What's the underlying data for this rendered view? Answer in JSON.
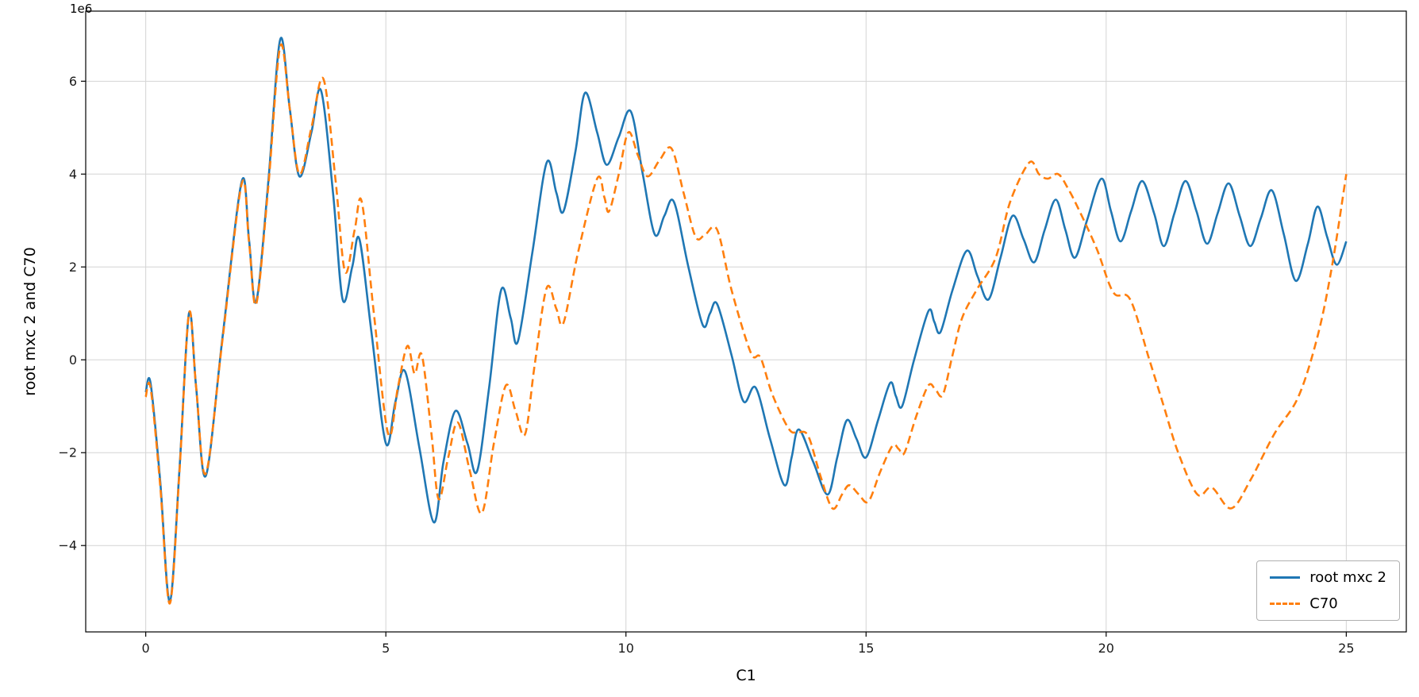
{
  "chart_data": {
    "type": "line",
    "title": "",
    "xlabel": "C1",
    "ylabel": "root mxc 2 and C70",
    "y_offset_label": "1e6",
    "y_unit_multiplier": 1000000,
    "xlim": [
      -1.25,
      26.25
    ],
    "ylim": [
      -5.86,
      7.51
    ],
    "xticks": [
      0,
      5,
      10,
      15,
      20,
      25
    ],
    "yticks": [
      -4,
      -2,
      0,
      2,
      4,
      6
    ],
    "grid": true,
    "colors": {
      "grid": "#d4d4d4",
      "spine": "#000000",
      "background": "#ffffff",
      "tick_text": "#1a1a1a"
    },
    "legend": {
      "position": "lower right"
    },
    "series": [
      {
        "name": "root mxc 2",
        "color": "#1f77b4",
        "style": "solid",
        "points": [
          [
            0,
            -0.7
          ],
          [
            0.1,
            -0.5
          ],
          [
            0.3,
            -2.6
          ],
          [
            0.5,
            -5.2
          ],
          [
            0.7,
            -2.4
          ],
          [
            0.9,
            1.0
          ],
          [
            1.05,
            -0.6
          ],
          [
            1.25,
            -2.5
          ],
          [
            1.6,
            0.5
          ],
          [
            2.0,
            3.85
          ],
          [
            2.15,
            2.6
          ],
          [
            2.3,
            1.25
          ],
          [
            2.55,
            3.8
          ],
          [
            2.8,
            6.9
          ],
          [
            3.0,
            5.4
          ],
          [
            3.2,
            3.95
          ],
          [
            3.45,
            4.9
          ],
          [
            3.65,
            5.8
          ],
          [
            3.9,
            3.6
          ],
          [
            4.1,
            1.3
          ],
          [
            4.3,
            2.0
          ],
          [
            4.45,
            2.6
          ],
          [
            4.7,
            0.6
          ],
          [
            5.0,
            -1.8
          ],
          [
            5.2,
            -0.9
          ],
          [
            5.4,
            -0.25
          ],
          [
            5.7,
            -1.9
          ],
          [
            6.0,
            -3.5
          ],
          [
            6.2,
            -2.2
          ],
          [
            6.45,
            -1.1
          ],
          [
            6.7,
            -1.8
          ],
          [
            6.9,
            -2.4
          ],
          [
            7.15,
            -0.6
          ],
          [
            7.4,
            1.5
          ],
          [
            7.6,
            0.9
          ],
          [
            7.75,
            0.4
          ],
          [
            8.05,
            2.3
          ],
          [
            8.35,
            4.25
          ],
          [
            8.55,
            3.6
          ],
          [
            8.7,
            3.2
          ],
          [
            8.95,
            4.5
          ],
          [
            9.15,
            5.75
          ],
          [
            9.4,
            4.9
          ],
          [
            9.6,
            4.2
          ],
          [
            9.85,
            4.8
          ],
          [
            10.1,
            5.35
          ],
          [
            10.35,
            4.0
          ],
          [
            10.6,
            2.7
          ],
          [
            10.8,
            3.1
          ],
          [
            11.0,
            3.4
          ],
          [
            11.3,
            2.0
          ],
          [
            11.6,
            0.75
          ],
          [
            11.75,
            1.0
          ],
          [
            11.9,
            1.2
          ],
          [
            12.2,
            0.1
          ],
          [
            12.45,
            -0.9
          ],
          [
            12.7,
            -0.6
          ],
          [
            13.0,
            -1.7
          ],
          [
            13.3,
            -2.7
          ],
          [
            13.45,
            -2.1
          ],
          [
            13.6,
            -1.5
          ],
          [
            13.9,
            -2.2
          ],
          [
            14.2,
            -2.9
          ],
          [
            14.4,
            -2.1
          ],
          [
            14.6,
            -1.3
          ],
          [
            14.8,
            -1.7
          ],
          [
            15.0,
            -2.1
          ],
          [
            15.25,
            -1.3
          ],
          [
            15.5,
            -0.5
          ],
          [
            15.62,
            -0.78
          ],
          [
            15.75,
            -1.0
          ],
          [
            16.0,
            0.0
          ],
          [
            16.3,
            1.05
          ],
          [
            16.42,
            0.82
          ],
          [
            16.55,
            0.6
          ],
          [
            16.8,
            1.5
          ],
          [
            17.1,
            2.35
          ],
          [
            17.32,
            1.8
          ],
          [
            17.55,
            1.3
          ],
          [
            17.8,
            2.2
          ],
          [
            18.05,
            3.1
          ],
          [
            18.28,
            2.6
          ],
          [
            18.5,
            2.1
          ],
          [
            18.72,
            2.8
          ],
          [
            18.95,
            3.45
          ],
          [
            19.15,
            2.8
          ],
          [
            19.35,
            2.2
          ],
          [
            19.6,
            3.0
          ],
          [
            19.9,
            3.9
          ],
          [
            20.1,
            3.2
          ],
          [
            20.3,
            2.55
          ],
          [
            20.52,
            3.2
          ],
          [
            20.75,
            3.85
          ],
          [
            21.0,
            3.15
          ],
          [
            21.2,
            2.45
          ],
          [
            21.42,
            3.15
          ],
          [
            21.65,
            3.85
          ],
          [
            21.88,
            3.2
          ],
          [
            22.1,
            2.5
          ],
          [
            22.32,
            3.15
          ],
          [
            22.55,
            3.8
          ],
          [
            22.78,
            3.1
          ],
          [
            23.0,
            2.45
          ],
          [
            23.22,
            3.05
          ],
          [
            23.45,
            3.65
          ],
          [
            23.7,
            2.7
          ],
          [
            23.95,
            1.7
          ],
          [
            24.2,
            2.5
          ],
          [
            24.4,
            3.3
          ],
          [
            24.6,
            2.65
          ],
          [
            24.8,
            2.05
          ],
          [
            25.0,
            2.55
          ]
        ]
      },
      {
        "name": "C70",
        "color": "#ff7f0e",
        "style": "dashed",
        "points": [
          [
            0,
            -0.8
          ],
          [
            0.1,
            -0.6
          ],
          [
            0.3,
            -2.7
          ],
          [
            0.5,
            -5.25
          ],
          [
            0.7,
            -2.45
          ],
          [
            0.9,
            1.0
          ],
          [
            1.05,
            -0.6
          ],
          [
            1.25,
            -2.45
          ],
          [
            1.6,
            0.45
          ],
          [
            2.0,
            3.8
          ],
          [
            2.15,
            2.55
          ],
          [
            2.3,
            1.2
          ],
          [
            2.55,
            3.7
          ],
          [
            2.8,
            6.75
          ],
          [
            3.0,
            5.4
          ],
          [
            3.2,
            4.0
          ],
          [
            3.45,
            5.0
          ],
          [
            3.7,
            6.05
          ],
          [
            3.95,
            3.9
          ],
          [
            4.15,
            1.9
          ],
          [
            4.35,
            2.8
          ],
          [
            4.5,
            3.4
          ],
          [
            4.75,
            1.0
          ],
          [
            5.05,
            -1.6
          ],
          [
            5.25,
            -0.6
          ],
          [
            5.45,
            0.3
          ],
          [
            5.6,
            -0.3
          ],
          [
            5.75,
            0.1
          ],
          [
            5.95,
            -1.6
          ],
          [
            6.1,
            -3.0
          ],
          [
            6.3,
            -2.1
          ],
          [
            6.5,
            -1.35
          ],
          [
            6.75,
            -2.4
          ],
          [
            7.0,
            -3.3
          ],
          [
            7.25,
            -1.8
          ],
          [
            7.5,
            -0.55
          ],
          [
            7.7,
            -1.1
          ],
          [
            7.9,
            -1.6
          ],
          [
            8.1,
            -0.1
          ],
          [
            8.35,
            1.55
          ],
          [
            8.55,
            1.1
          ],
          [
            8.7,
            0.8
          ],
          [
            9.0,
            2.3
          ],
          [
            9.4,
            3.9
          ],
          [
            9.55,
            3.5
          ],
          [
            9.65,
            3.2
          ],
          [
            9.85,
            4.0
          ],
          [
            10.05,
            4.9
          ],
          [
            10.25,
            4.4
          ],
          [
            10.45,
            3.95
          ],
          [
            10.7,
            4.3
          ],
          [
            10.95,
            4.55
          ],
          [
            11.2,
            3.6
          ],
          [
            11.45,
            2.65
          ],
          [
            11.65,
            2.7
          ],
          [
            11.9,
            2.8
          ],
          [
            12.2,
            1.5
          ],
          [
            12.6,
            0.15
          ],
          [
            12.8,
            0.05
          ],
          [
            13.05,
            -0.75
          ],
          [
            13.4,
            -1.5
          ],
          [
            13.6,
            -1.55
          ],
          [
            13.8,
            -1.65
          ],
          [
            14.05,
            -2.5
          ],
          [
            14.3,
            -3.2
          ],
          [
            14.5,
            -2.9
          ],
          [
            14.65,
            -2.7
          ],
          [
            14.85,
            -2.9
          ],
          [
            15.05,
            -3.05
          ],
          [
            15.3,
            -2.4
          ],
          [
            15.55,
            -1.85
          ],
          [
            15.68,
            -1.92
          ],
          [
            15.8,
            -2.0
          ],
          [
            16.05,
            -1.2
          ],
          [
            16.3,
            -0.55
          ],
          [
            16.45,
            -0.65
          ],
          [
            16.6,
            -0.75
          ],
          [
            16.8,
            0.1
          ],
          [
            17.0,
            0.9
          ],
          [
            17.3,
            1.5
          ],
          [
            17.7,
            2.2
          ],
          [
            18.0,
            3.4
          ],
          [
            18.4,
            4.25
          ],
          [
            18.6,
            4.0
          ],
          [
            18.78,
            3.9
          ],
          [
            19.0,
            4.0
          ],
          [
            19.2,
            3.7
          ],
          [
            19.4,
            3.3
          ],
          [
            19.8,
            2.4
          ],
          [
            20.15,
            1.45
          ],
          [
            20.5,
            1.3
          ],
          [
            20.9,
            0.0
          ],
          [
            21.2,
            -1.0
          ],
          [
            21.5,
            -2.0
          ],
          [
            21.9,
            -2.9
          ],
          [
            22.2,
            -2.75
          ],
          [
            22.6,
            -3.2
          ],
          [
            23.0,
            -2.6
          ],
          [
            23.5,
            -1.6
          ],
          [
            24.0,
            -0.8
          ],
          [
            24.4,
            0.5
          ],
          [
            24.7,
            2.0
          ],
          [
            25.0,
            4.0
          ]
        ]
      }
    ]
  }
}
